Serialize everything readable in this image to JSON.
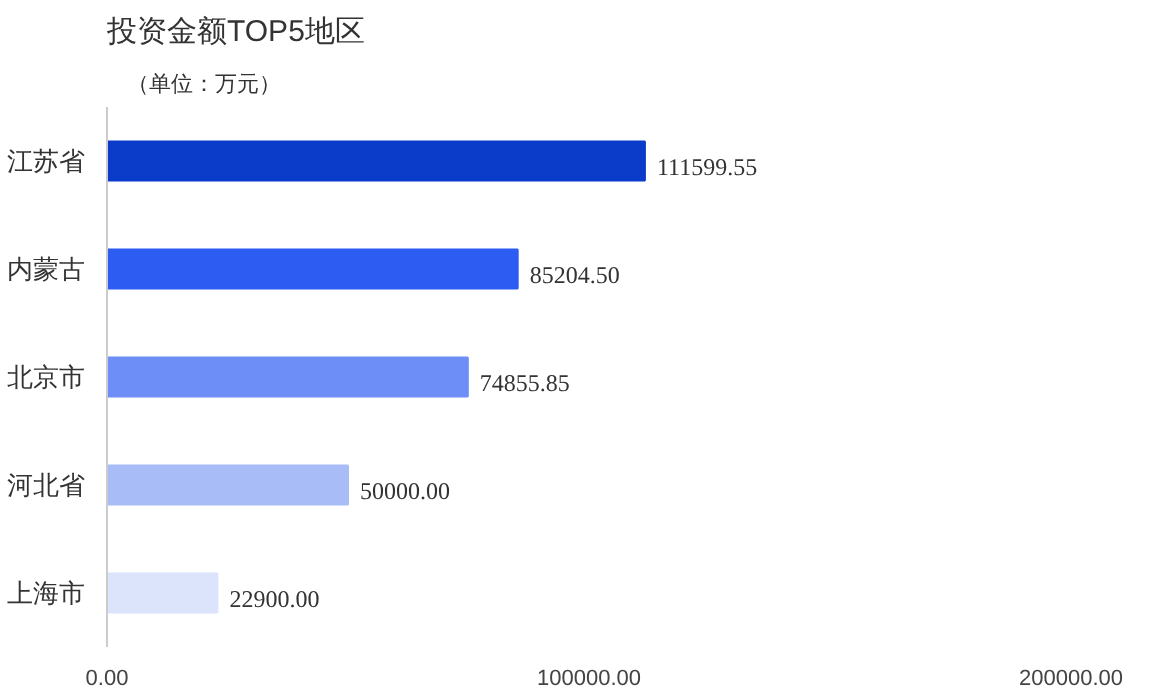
{
  "chart_data": {
    "type": "bar",
    "orientation": "horizontal",
    "title": "投资金额TOP5地区",
    "subtitle": "（单位：万元）",
    "categories": [
      "江苏省",
      "内蒙古",
      "北京市",
      "河北省",
      "上海市"
    ],
    "values": [
      111599.55,
      85204.5,
      74855.85,
      50000.0,
      22900.0
    ],
    "colors": [
      "#0b3bc9",
      "#2d5cf2",
      "#6c8ef6",
      "#a8bcf8",
      "#dce4fc"
    ],
    "value_labels": [
      "111599.55",
      "85204.50",
      "74855.85",
      "50000.00",
      "22900.00"
    ],
    "xlim": [
      0,
      200000
    ],
    "xticks": [
      {
        "value": 0,
        "label": "0.00"
      },
      {
        "value": 100000,
        "label": "100000.00"
      },
      {
        "value": 200000,
        "label": "200000.00"
      }
    ],
    "grid": false
  }
}
